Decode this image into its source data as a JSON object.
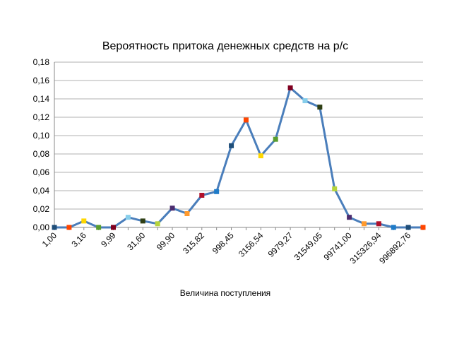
{
  "chart_data": {
    "type": "line",
    "title": "Вероятность притока денежных средств  на р/с",
    "xlabel": "Величина поступления",
    "ylabel": "",
    "ylim": [
      0,
      0.18
    ],
    "yticks": [
      "0,00",
      "0,02",
      "0,04",
      "0,06",
      "0,08",
      "0,10",
      "0,12",
      "0,14",
      "0,16",
      "0,18"
    ],
    "grid": true,
    "legend": "none",
    "line_color": "#4a7ebb",
    "x_tick_labels": [
      "1,00",
      "3,16",
      "9,99",
      "31,60",
      "99,90",
      "315,82",
      "998,45",
      "3156,54",
      "9979,27",
      "31549,05",
      "99741,00",
      "315326,94",
      "996892,76"
    ],
    "x_tick_every": 2,
    "values": [
      0.0,
      0.0,
      0.007,
      0.0,
      0.0,
      0.011,
      0.007,
      0.004,
      0.021,
      0.015,
      0.035,
      0.039,
      0.089,
      0.117,
      0.078,
      0.096,
      0.152,
      0.138,
      0.131,
      0.042,
      0.011,
      0.004,
      0.004,
      0.0,
      0.0,
      0.0
    ],
    "marker_colors": [
      "#1f4e79",
      "#ff4500",
      "#ffd700",
      "#5a9e2f",
      "#800020",
      "#87ceeb",
      "#2f3f14",
      "#b5d33c",
      "#4b2c6f",
      "#ff9a2e",
      "#b0102a",
      "#1e7bc8",
      "#1f4e79",
      "#ff4500",
      "#ffd700",
      "#5a9e2f",
      "#800020",
      "#87ceeb",
      "#2f3f14",
      "#b5d33c",
      "#4b2c6f",
      "#ff9a2e",
      "#b0102a",
      "#1e7bc8",
      "#1f4e79",
      "#ff4500"
    ]
  }
}
